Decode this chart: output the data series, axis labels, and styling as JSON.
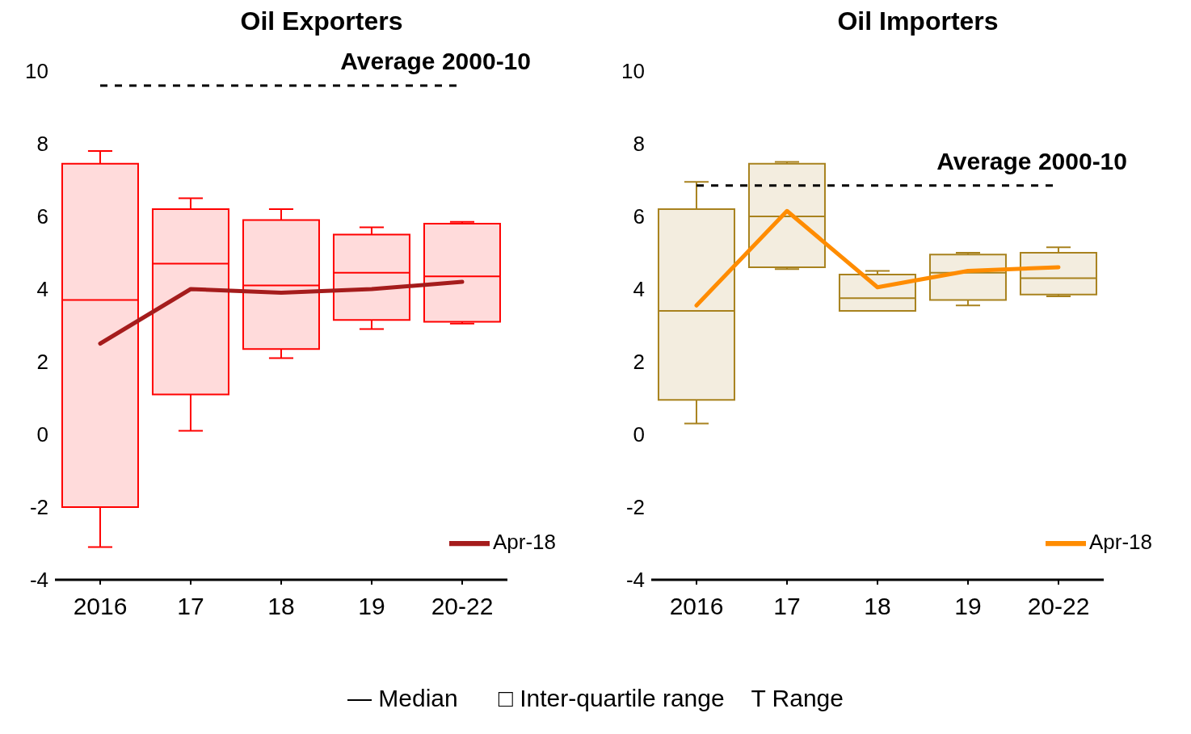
{
  "chart_data": [
    {
      "type": "box",
      "title": "Oil Exporters",
      "categories": [
        "2016",
        "17",
        "18",
        "19",
        "20-22"
      ],
      "ylim": [
        -4,
        10
      ],
      "yticks": [
        -4,
        -2,
        0,
        2,
        4,
        6,
        8,
        10
      ],
      "grid": false,
      "legend": "bottom right",
      "marker": "none",
      "series": [
        {
          "color": "#ff0000",
          "boxes": [
            {
              "low": -3.1,
              "q1": -2.0,
              "median": 3.7,
              "q3": 7.45,
              "high": 7.8
            },
            {
              "low": 0.1,
              "q1": 1.1,
              "median": 4.7,
              "q3": 6.2,
              "high": 6.5
            },
            {
              "low": 2.1,
              "q1": 2.35,
              "median": 4.1,
              "q3": 5.9,
              "high": 6.2
            },
            {
              "low": 2.9,
              "q1": 3.15,
              "median": 4.45,
              "q3": 5.5,
              "high": 5.7
            },
            {
              "low": 3.05,
              "q1": 3.1,
              "median": 4.35,
              "q3": 5.8,
              "high": 5.85
            }
          ]
        },
        {
          "type": "line",
          "name": "Apr-18",
          "color": "#a51c1c",
          "values": [
            2.5,
            4.0,
            3.9,
            4.0,
            4.2
          ]
        }
      ],
      "ref_lines": [
        {
          "axis": "y",
          "value": 9.6,
          "label": "Average 2000-10",
          "color": "#000000",
          "line_style": "dashed"
        }
      ],
      "annotations": [
        "— Median      □ Inter-quartile range    T Range"
      ]
    },
    {
      "type": "box",
      "title": "Oil Importers",
      "categories": [
        "2016",
        "17",
        "18",
        "19",
        "20-22"
      ],
      "ylim": [
        -4,
        10
      ],
      "yticks": [
        -4,
        -2,
        0,
        2,
        4,
        6,
        8,
        10
      ],
      "grid": false,
      "legend": "bottom right",
      "marker": "none",
      "series": [
        {
          "color": "#a8821e",
          "boxes": [
            {
              "low": 0.3,
              "q1": 0.95,
              "median": 3.4,
              "q3": 6.2,
              "high": 6.95
            },
            {
              "low": 4.55,
              "q1": 4.6,
              "median": 6.0,
              "q3": 7.45,
              "high": 7.5
            },
            {
              "low": 3.4,
              "q1": 3.4,
              "median": 3.75,
              "q3": 4.4,
              "high": 4.5
            },
            {
              "low": 3.55,
              "q1": 3.7,
              "median": 4.45,
              "q3": 4.95,
              "high": 5.0
            },
            {
              "low": 3.8,
              "q1": 3.85,
              "median": 4.3,
              "q3": 5.0,
              "high": 5.15
            }
          ]
        },
        {
          "type": "line",
          "name": "Apr-18",
          "color": "#ff8c00",
          "values": [
            3.55,
            6.15,
            4.05,
            4.5,
            4.6
          ]
        }
      ],
      "ref_lines": [
        {
          "axis": "y",
          "value": 6.85,
          "label": "Average 2000-10",
          "color": "#000000",
          "line_style": "dashed"
        }
      ]
    }
  ]
}
